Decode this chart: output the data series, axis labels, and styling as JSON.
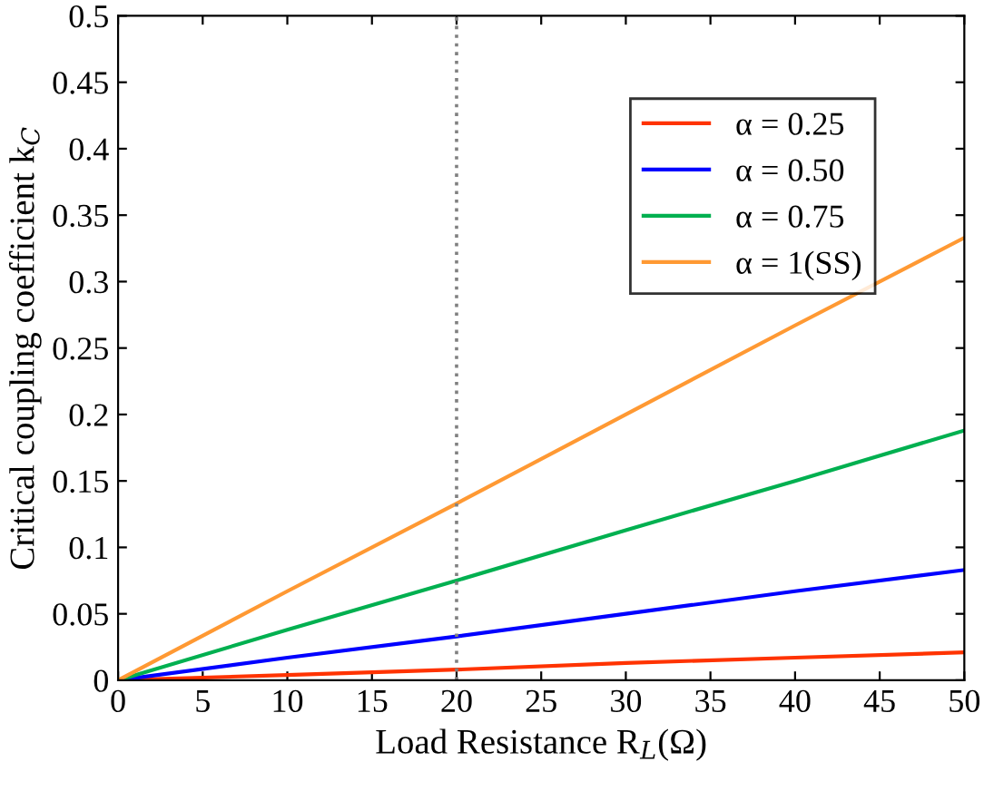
{
  "chart_data": {
    "type": "line",
    "xlabel": "Load Resistance R$_{L}$(Ω)",
    "ylabel": "Critical coupling coefficient k$_{C}$",
    "series": [
      {
        "name": "α = 0.25",
        "color": "#ff3300",
        "x": [
          0,
          10,
          20,
          30,
          40,
          50
        ],
        "values": [
          0,
          0.004,
          0.008,
          0.013,
          0.017,
          0.021
        ]
      },
      {
        "name": "α = 0.50",
        "color": "#0000ff",
        "x": [
          0,
          10,
          20,
          30,
          40,
          50
        ],
        "values": [
          0,
          0.017,
          0.033,
          0.05,
          0.067,
          0.083
        ]
      },
      {
        "name": "α = 0.75",
        "color": "#00b050",
        "x": [
          0,
          10,
          20,
          30,
          40,
          50
        ],
        "values": [
          0,
          0.038,
          0.075,
          0.113,
          0.15,
          0.188
        ]
      },
      {
        "name": "α = 1(SS)",
        "color": "#ff9933",
        "x": [
          0,
          10,
          20,
          30,
          40,
          50
        ],
        "values": [
          0,
          0.067,
          0.133,
          0.2,
          0.267,
          0.333
        ]
      }
    ],
    "xlim": [
      0,
      50
    ],
    "xticks": [
      0,
      5,
      10,
      15,
      20,
      25,
      30,
      35,
      40,
      45,
      50
    ],
    "ylim": [
      0,
      0.5
    ],
    "yticks": [
      0,
      0.05,
      0.1,
      0.15,
      0.2,
      0.25,
      0.3,
      0.35,
      0.4,
      0.45,
      0.5
    ],
    "ref_lines": [
      {
        "axis": "x",
        "value": 20,
        "color": "#808080",
        "line_style": "dotted"
      }
    ],
    "grid": false,
    "legend": "top",
    "line_style": "solid",
    "marker": "none"
  }
}
